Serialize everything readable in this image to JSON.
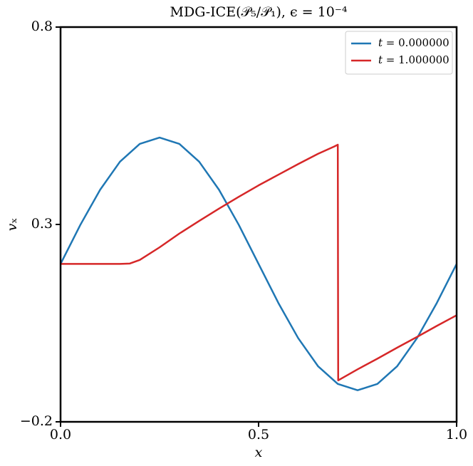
{
  "chart_data": {
    "type": "line",
    "title": "MDG-ICE(𝒫₅/𝒫₁), ϵ = 10⁻⁴",
    "x_label": "𝑥",
    "y_label": "𝑣ₓ",
    "xlim": [
      0,
      1
    ],
    "ylim": [
      -0.2,
      0.8
    ],
    "xticks": [
      {
        "value": 0,
        "label": "0.0"
      },
      0.5,
      {
        "value": 1,
        "label": "1.0"
      }
    ],
    "yticks": [
      {
        "value": -0.2,
        "label": "−0.2"
      },
      0.3,
      0.8
    ],
    "grid": false,
    "legend": "upper right",
    "series": [
      {
        "name": "𝑡 = 0.000000",
        "color": "#1f77b4",
        "x": [
          0,
          0.05,
          0.1,
          0.15,
          0.2,
          0.25,
          0.3,
          0.35,
          0.4,
          0.45,
          0.5,
          0.55,
          0.6,
          0.65,
          0.7,
          0.75,
          0.8,
          0.85,
          0.9,
          0.95,
          1.0
        ],
        "values": [
          0.2,
          0.299,
          0.388,
          0.459,
          0.504,
          0.52,
          0.504,
          0.459,
          0.388,
          0.299,
          0.2,
          0.101,
          0.012,
          -0.059,
          -0.104,
          -0.12,
          -0.104,
          -0.059,
          0.012,
          0.101,
          0.2
        ]
      },
      {
        "name": "𝑡 = 1.000000",
        "color": "#d62728",
        "x": [
          0,
          0.05,
          0.1,
          0.15,
          0.175,
          0.2,
          0.25,
          0.3,
          0.35,
          0.4,
          0.45,
          0.5,
          0.55,
          0.6,
          0.65,
          0.69,
          0.7,
          0.701,
          0.75,
          0.8,
          0.85,
          0.9,
          0.95,
          1.0
        ],
        "values": [
          0.2,
          0.2,
          0.2,
          0.2,
          0.201,
          0.21,
          0.242,
          0.277,
          0.309,
          0.34,
          0.37,
          0.399,
          0.426,
          0.453,
          0.479,
          0.497,
          0.502,
          -0.095,
          -0.067,
          -0.04,
          -0.012,
          0.015,
          0.043,
          0.07
        ]
      }
    ]
  }
}
